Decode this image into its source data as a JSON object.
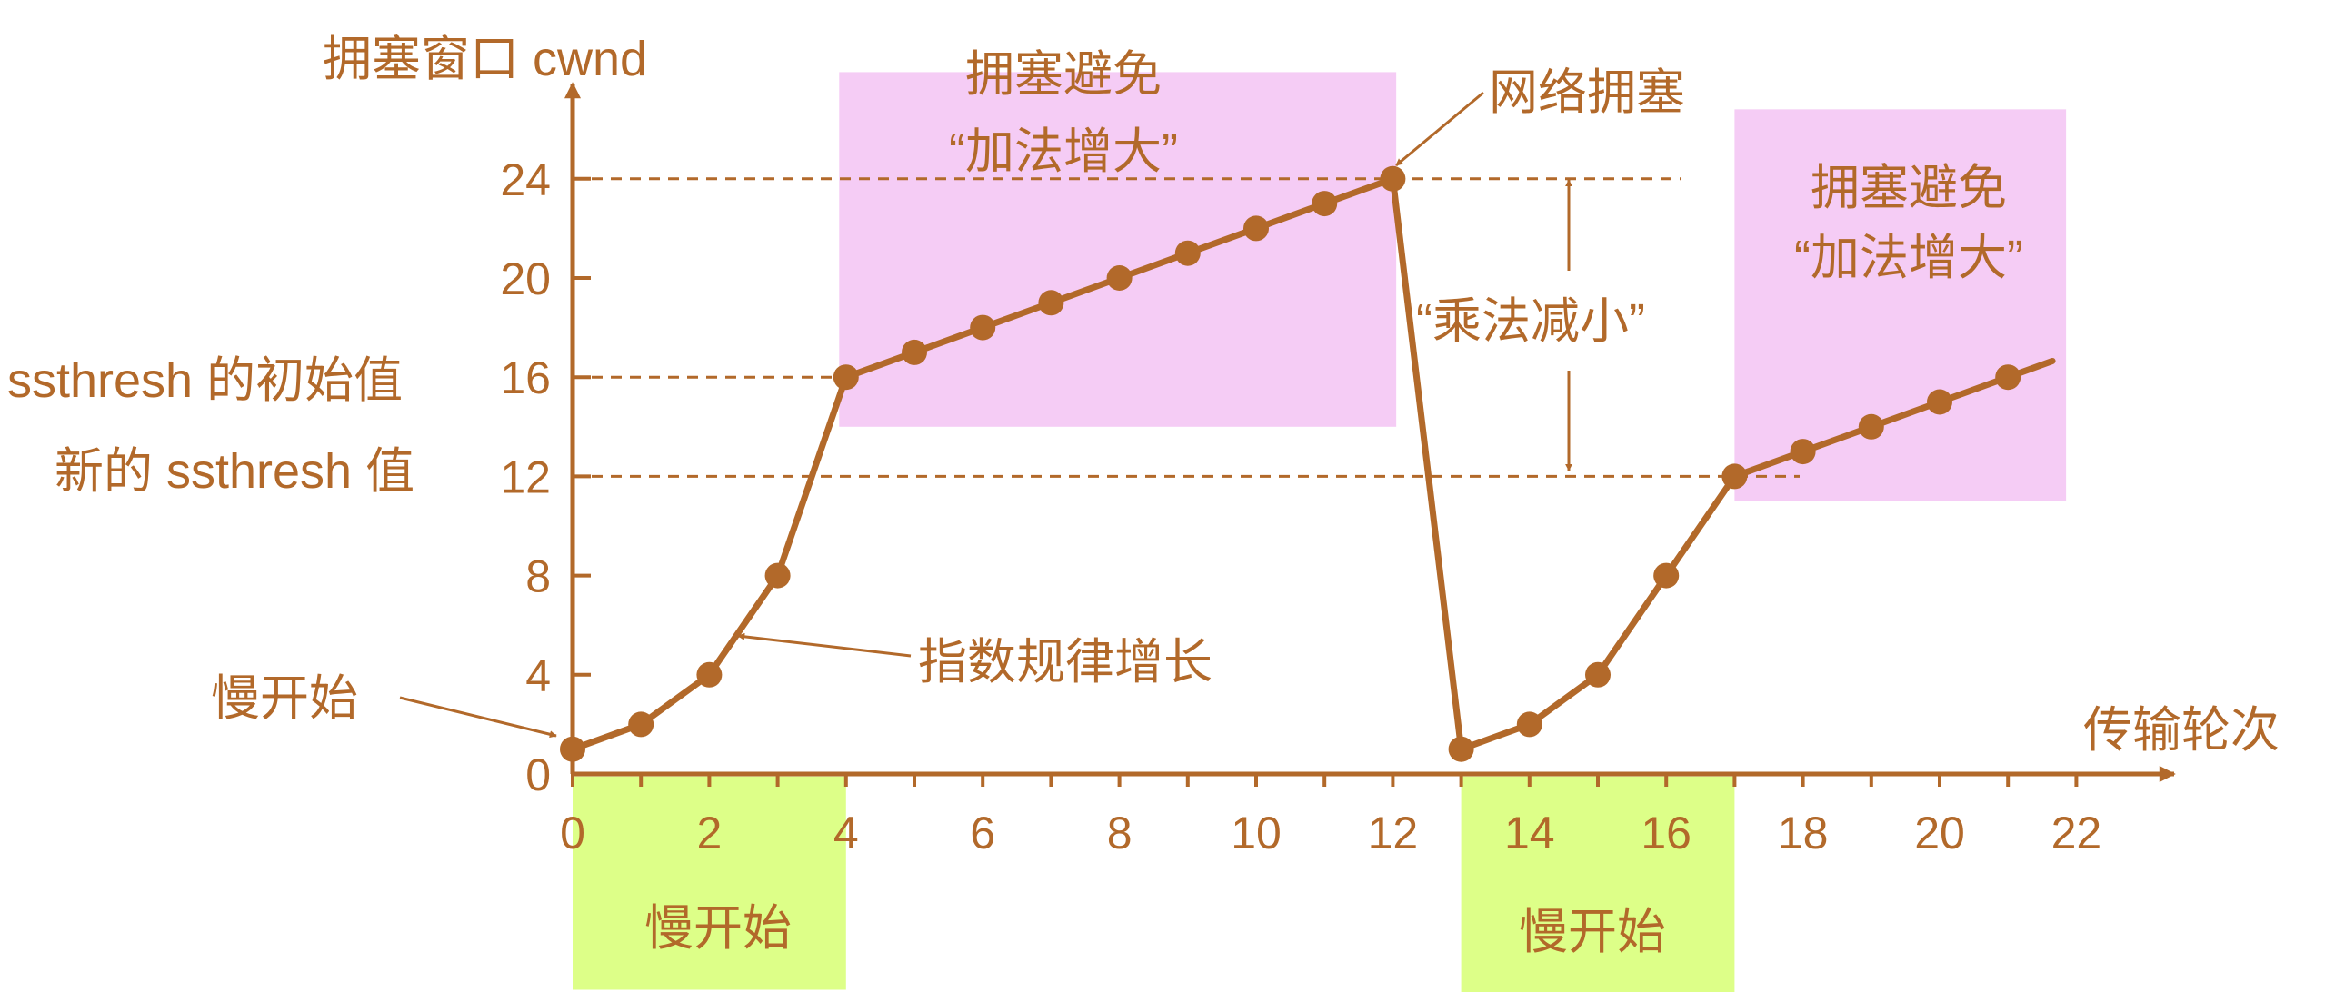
{
  "colors": {
    "ink": "#B2692A",
    "line": "#B2692A",
    "dot": "#B2692A",
    "pink": "#F5CCF5",
    "green": "#DDFF88"
  },
  "labels": {
    "y_axis": "拥塞窗口 cwnd",
    "x_axis": "传输轮次",
    "ssthresh_initial": "ssthresh 的初始值",
    "ssthresh_new": "新的 ssthresh 值",
    "slow_start_arrow": "慢开始",
    "exponential_growth": "指数规律增长",
    "network_congestion": "网络拥塞",
    "multiplicative_decrease": "“乘法减小”",
    "ca_box1_line1": "拥塞避免",
    "ca_box1_line2": "“加法增大”",
    "ca_box2_line1": "拥塞避免",
    "ca_box2_line2": "“加法增大”",
    "ss_box1": "慢开始",
    "ss_box2": "慢开始"
  },
  "chart_data": {
    "type": "line",
    "xlabel": "传输轮次",
    "ylabel": "拥塞窗口 cwnd",
    "xlim": [
      0,
      23
    ],
    "ylim": [
      0,
      27
    ],
    "x_ticks": [
      0,
      2,
      4,
      6,
      8,
      10,
      12,
      14,
      16,
      18,
      20,
      22
    ],
    "y_ticks": [
      0,
      4,
      8,
      12,
      16,
      20,
      24
    ],
    "series": [
      {
        "points": [
          [
            0,
            1
          ],
          [
            1,
            2
          ],
          [
            2,
            4
          ],
          [
            3,
            8
          ],
          [
            4,
            16
          ],
          [
            5,
            17
          ],
          [
            6,
            18
          ],
          [
            7,
            19
          ],
          [
            8,
            20
          ],
          [
            9,
            21
          ],
          [
            10,
            22
          ],
          [
            11,
            23
          ],
          [
            12,
            24
          ],
          [
            13,
            1
          ],
          [
            14,
            2
          ],
          [
            15,
            4
          ],
          [
            16,
            8
          ],
          [
            17,
            12
          ],
          [
            18,
            13
          ],
          [
            19,
            14
          ],
          [
            20,
            15
          ],
          [
            21,
            16
          ]
        ],
        "extension": [
          21.65,
          16.65
        ]
      }
    ],
    "reference_lines": [
      {
        "y": 24
      },
      {
        "y": 16
      },
      {
        "y": 12
      }
    ],
    "regions": [
      {
        "kind": "congestion-avoidance",
        "x": [
          3.9,
          12.05
        ],
        "y": [
          14,
          28.3
        ]
      },
      {
        "kind": "congestion-avoidance",
        "x": [
          17.0,
          21.85
        ],
        "y": [
          11,
          26.8
        ]
      },
      {
        "kind": "slow-start",
        "x": [
          0,
          4.0
        ],
        "y": [
          -8.7,
          -0.1
        ]
      },
      {
        "kind": "slow-start",
        "x": [
          13.0,
          17.0
        ],
        "y": [
          -8.9,
          -0.1
        ]
      }
    ]
  }
}
